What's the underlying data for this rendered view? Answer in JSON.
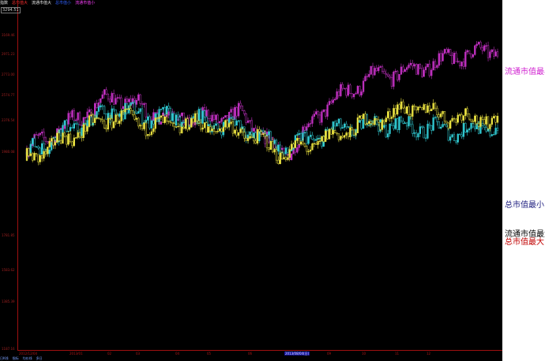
{
  "header": {
    "items": [
      {
        "text": "指数",
        "color": "#e0e0e0"
      },
      {
        "text": "总市值大",
        "color": "#ff3030"
      },
      {
        "text": "流通市值大",
        "color": "#e8e8e8"
      },
      {
        "text": "总市值小",
        "color": "#3060ff"
      },
      {
        "text": "流通市值小",
        "color": "#ff40ff"
      }
    ]
  },
  "top_value": "3294.51",
  "y_axis": {
    "ticks": [
      "3169.46",
      "2971.23",
      "2773.00",
      "2574.77",
      "2376.54",
      "1980.08",
      "1781.85",
      "1583.62",
      "1385.39",
      "1187.16"
    ]
  },
  "x_axis": {
    "ticks": [
      {
        "label": "2013/01",
        "highlight": false
      },
      {
        "label": "02",
        "highlight": false
      },
      {
        "label": "03",
        "highlight": false
      },
      {
        "label": "04",
        "highlight": false
      },
      {
        "label": "05",
        "highlight": false
      },
      {
        "label": "06",
        "highlight": false
      },
      {
        "label": "07",
        "highlight": false
      },
      {
        "label": "2013/08/04(日)",
        "highlight": true
      },
      {
        "label": "09",
        "highlight": false
      },
      {
        "label": "10",
        "highlight": false
      },
      {
        "label": "11",
        "highlight": false
      },
      {
        "label": "12",
        "highlight": false
      }
    ],
    "start_label": "2012/12/04"
  },
  "footer": {
    "items": [
      "日K线",
      "指标",
      "均价线",
      "多日"
    ]
  },
  "legend": [
    {
      "text": "流通市值最小",
      "color": "#d020d0"
    },
    {
      "text": "总市值最小",
      "color": "#202080"
    },
    {
      "text": "流通市值最大",
      "color": "#000000"
    },
    {
      "text": "总市值最大",
      "color": "#c00000"
    }
  ],
  "colors": {
    "background": "#000000",
    "series_magenta": "#c030c0",
    "series_yellow": "#e8e040",
    "series_cyan": "#30c8d0",
    "axis": "#a01010"
  },
  "chart_data": {
    "type": "line",
    "x": [
      "2013/01",
      "02",
      "03",
      "04",
      "05",
      "06",
      "07",
      "08",
      "09",
      "10",
      "11",
      "12"
    ],
    "series": [
      {
        "name": "流通市值最小",
        "color": "#c030c0",
        "values": [
          2420,
          2580,
          2750,
          2640,
          2600,
          2630,
          2380,
          2690,
          2860,
          2910,
          2990,
          3040
        ]
      },
      {
        "name": "总市值最小",
        "color": "#30c8d0",
        "values": [
          2400,
          2540,
          2660,
          2620,
          2590,
          2560,
          2420,
          2520,
          2580,
          2560,
          2530,
          2560
        ]
      },
      {
        "name": "流通市值最大",
        "color": "#e8e040",
        "values": [
          2350,
          2500,
          2620,
          2560,
          2570,
          2530,
          2390,
          2480,
          2590,
          2680,
          2620,
          2600
        ]
      }
    ],
    "ylim": [
      1187.16,
      3294.51
    ]
  }
}
